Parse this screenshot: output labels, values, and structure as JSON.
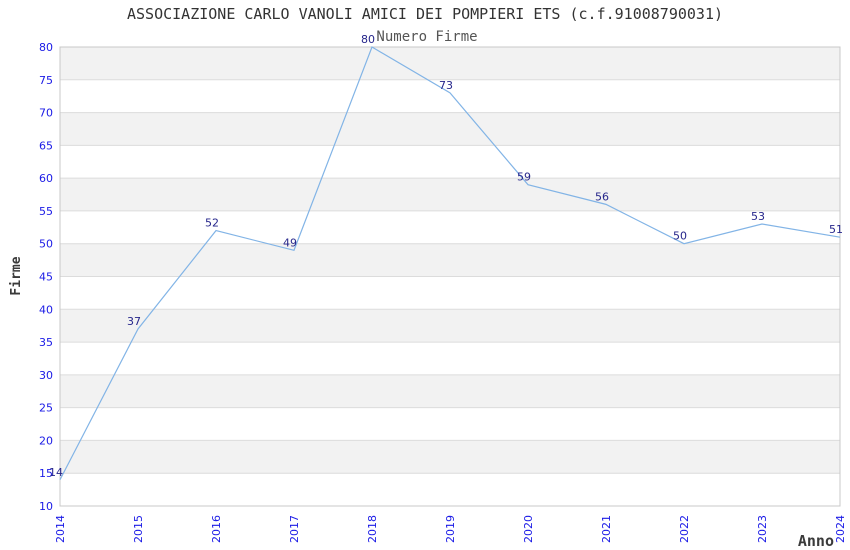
{
  "chart_data": {
    "type": "line",
    "title": "ASSOCIAZIONE CARLO VANOLI AMICI DEI POMPIERI ETS (c.f.91008790031)",
    "subtitle": "Numero Firme",
    "xlabel": "Anno",
    "ylabel": "Firme",
    "categories": [
      "2014",
      "2015",
      "2016",
      "2017",
      "2018",
      "2019",
      "2020",
      "2021",
      "2022",
      "2023",
      "2024"
    ],
    "values": [
      14,
      37,
      52,
      49,
      80,
      73,
      59,
      56,
      50,
      53,
      51
    ],
    "ylim": [
      10,
      80
    ],
    "ytick_step": 5,
    "yticks": [
      10,
      15,
      20,
      25,
      30,
      35,
      40,
      45,
      50,
      55,
      60,
      65,
      70,
      75,
      80
    ],
    "grid": "horizontal gridlines with alternating shaded bands",
    "legend": "none",
    "markers": "none",
    "data_labels_shown": true,
    "colors": {
      "line": "#82b4e6",
      "tick_label": "#1a1ae6",
      "data_label": "#26268b",
      "band": "#f2f2f2",
      "gridline": "#dcdcdc",
      "plot_border": "#c8c8c8",
      "title": "#333333",
      "subtitle": "#555555",
      "axis_title": "#3a3a3a",
      "background": "#ffffff"
    }
  }
}
